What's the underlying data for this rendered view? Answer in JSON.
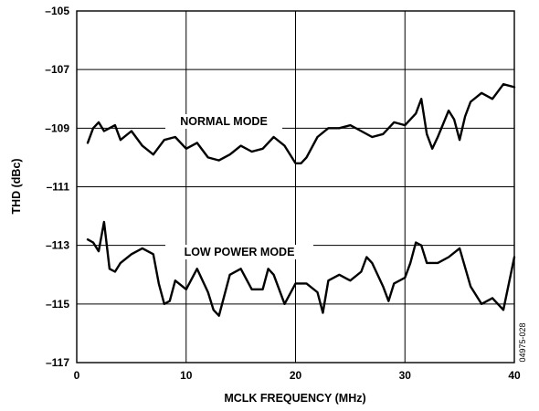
{
  "chart_data": {
    "type": "line",
    "xlabel": "MCLK FREQUENCY (MHz)",
    "ylabel": "THD (dBc)",
    "xlim": [
      0,
      40
    ],
    "ylim": [
      -117,
      -105
    ],
    "xticks": [
      "0",
      "10",
      "20",
      "30",
      "40"
    ],
    "yticks": [
      "–117",
      "–115",
      "–113",
      "–111",
      "–109",
      "–107",
      "–105"
    ],
    "grid": true,
    "figure_id": "04975-028",
    "series": [
      {
        "name": "NORMAL MODE",
        "x": [
          1,
          1.5,
          2,
          2.5,
          3,
          3.5,
          4,
          5,
          6,
          7,
          8,
          9,
          10,
          11,
          12,
          13,
          14,
          15,
          16,
          17,
          18,
          19,
          20,
          20.5,
          21,
          22,
          23,
          24,
          25,
          26,
          27,
          28,
          29,
          30,
          31,
          31.5,
          32,
          32.5,
          33,
          34,
          34.5,
          35,
          35.5,
          36,
          37,
          38,
          39,
          40
        ],
        "values": [
          -109.5,
          -109.0,
          -108.8,
          -109.1,
          -109.0,
          -108.9,
          -109.4,
          -109.1,
          -109.6,
          -109.9,
          -109.4,
          -109.3,
          -109.7,
          -109.5,
          -110.0,
          -110.1,
          -109.9,
          -109.6,
          -109.8,
          -109.7,
          -109.3,
          -109.6,
          -110.2,
          -110.2,
          -110.0,
          -109.3,
          -109.0,
          -109.0,
          -108.9,
          -109.1,
          -109.3,
          -109.2,
          -108.8,
          -108.9,
          -108.5,
          -108.0,
          -109.2,
          -109.7,
          -109.3,
          -108.4,
          -108.7,
          -109.4,
          -108.6,
          -108.1,
          -107.8,
          -108.0,
          -107.5,
          -107.6
        ]
      },
      {
        "name": "LOW POWER MODE",
        "x": [
          1,
          1.5,
          2,
          2.5,
          3,
          3.5,
          4,
          5,
          6,
          7,
          7.5,
          8,
          8.5,
          9,
          10,
          11,
          12,
          12.5,
          13,
          14,
          15,
          16,
          17,
          17.5,
          18,
          19,
          20,
          21,
          22,
          22.5,
          23,
          24,
          25,
          26,
          26.5,
          27,
          28,
          28.5,
          29,
          30,
          30.5,
          31,
          31.5,
          32,
          33,
          34,
          35,
          36,
          37,
          38,
          39,
          40
        ],
        "values": [
          -112.8,
          -112.9,
          -113.2,
          -112.2,
          -113.8,
          -113.9,
          -113.6,
          -113.3,
          -113.1,
          -113.3,
          -114.3,
          -115.0,
          -114.9,
          -114.2,
          -114.5,
          -113.8,
          -114.6,
          -115.2,
          -115.4,
          -114.0,
          -113.8,
          -114.5,
          -114.5,
          -113.8,
          -114.0,
          -115.0,
          -114.3,
          -114.3,
          -114.6,
          -115.3,
          -114.2,
          -114.0,
          -114.2,
          -113.9,
          -113.4,
          -113.6,
          -114.4,
          -114.9,
          -114.3,
          -114.1,
          -113.6,
          -112.9,
          -113.0,
          -113.6,
          -113.6,
          -113.4,
          -113.1,
          -114.4,
          -115.0,
          -114.8,
          -115.2,
          -113.4
        ]
      }
    ],
    "annotations": [
      "NORMAL MODE",
      "LOW POWER MODE"
    ]
  }
}
